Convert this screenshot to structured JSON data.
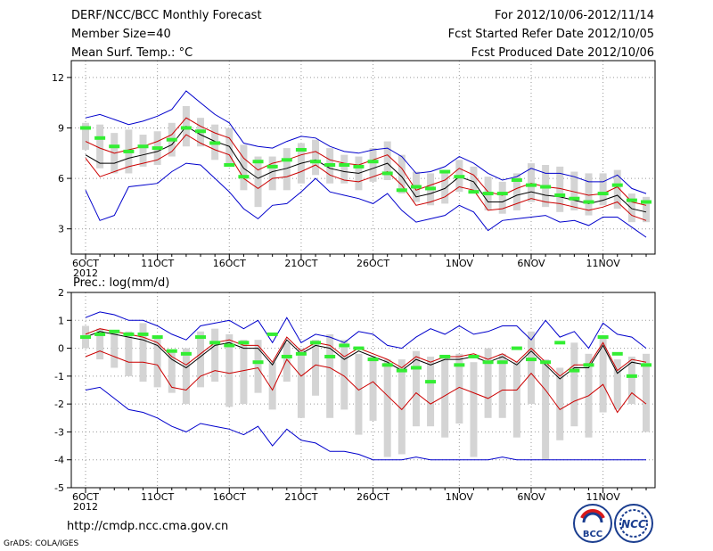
{
  "header": {
    "title": "DERF/NCC/BCC Monthly Forecast",
    "member_size": "Member Size=40",
    "variable": "Mean Surf. Temp.: °C",
    "period": "For 2012/10/06-2012/11/14",
    "started": "Fcst Started Refer Date 2012/10/05",
    "produced": "Fcst Produced Date 2012/10/06"
  },
  "footer": {
    "url": "http://cmdp.ncc.cma.gov.cn",
    "credit": "GrADS: COLA/IGES",
    "logo_left": "BCC",
    "logo_right": "NCC"
  },
  "colors": {
    "envelope": "#0000cc",
    "spread": "#cc0000",
    "mean": "#000000",
    "box": "#d4d4d4",
    "median": "#33ee33",
    "grid": "#999999"
  },
  "chart_data": [
    {
      "type": "box-plume",
      "title": "Mean Surf. Temp.: °C",
      "ylim": [
        1.5,
        13
      ],
      "yticks": [
        3,
        6,
        9,
        12
      ],
      "x_tick_labels": [
        "6OCT",
        "11OCT",
        "16OCT",
        "21OCT",
        "26OCT",
        "1NOV",
        "6NOV",
        "11NOV"
      ],
      "x_tick_index": [
        0,
        5,
        10,
        15,
        20,
        26,
        31,
        36
      ],
      "year_label": "2012",
      "days": 40,
      "max": [
        9.6,
        9.8,
        9.5,
        9.2,
        9.4,
        9.7,
        10.1,
        11.2,
        10.5,
        9.8,
        9.3,
        8.1,
        7.9,
        7.8,
        8.2,
        8.5,
        8.4,
        7.9,
        7.6,
        7.5,
        7.7,
        7.8,
        7.3,
        6.3,
        6.4,
        6.7,
        7.3,
        6.9,
        6.3,
        5.9,
        6.1,
        6.6,
        6.3,
        6.3,
        6.1,
        5.8,
        5.8,
        6.2,
        5.4,
        5.1
      ],
      "spread_hi": [
        8.2,
        7.8,
        7.5,
        7.7,
        7.9,
        8.2,
        8.6,
        9.6,
        9.1,
        8.7,
        8.4,
        7.2,
        6.5,
        6.9,
        7.1,
        7.4,
        7.6,
        7.1,
        6.9,
        6.8,
        7.1,
        7.4,
        6.6,
        5.3,
        5.6,
        5.9,
        6.6,
        6.2,
        5.2,
        5.0,
        5.4,
        5.7,
        5.5,
        5.4,
        5.2,
        5.0,
        5.1,
        5.5,
        4.6,
        4.4
      ],
      "mean": [
        7.4,
        6.9,
        6.9,
        7.2,
        7.4,
        7.6,
        8.0,
        9.1,
        8.6,
        8.2,
        7.9,
        6.6,
        6.0,
        6.4,
        6.6,
        6.9,
        7.1,
        6.6,
        6.4,
        6.3,
        6.6,
        6.9,
        6.1,
        4.9,
        5.1,
        5.4,
        6.1,
        5.8,
        4.6,
        4.6,
        5.0,
        5.2,
        5.0,
        4.9,
        4.7,
        4.5,
        4.7,
        5.0,
        4.2,
        4.0
      ],
      "spread_lo": [
        7.2,
        6.1,
        6.4,
        6.7,
        6.9,
        7.1,
        7.6,
        8.6,
        8.1,
        7.7,
        7.4,
        6.0,
        5.4,
        6.0,
        6.1,
        6.4,
        6.8,
        6.2,
        5.9,
        5.8,
        6.1,
        6.4,
        5.6,
        4.4,
        4.6,
        4.9,
        5.5,
        5.3,
        4.1,
        4.2,
        4.5,
        4.8,
        4.6,
        4.5,
        4.3,
        4.1,
        4.3,
        4.6,
        3.8,
        3.5
      ],
      "min": [
        5.3,
        3.5,
        3.8,
        5.5,
        5.6,
        5.7,
        6.4,
        6.9,
        6.8,
        6.0,
        5.2,
        4.2,
        3.6,
        4.4,
        4.5,
        5.2,
        6.0,
        5.2,
        5.0,
        4.8,
        4.5,
        5.1,
        4.1,
        3.4,
        3.6,
        3.8,
        4.4,
        4.0,
        2.9,
        3.5,
        3.6,
        3.7,
        3.8,
        3.4,
        3.5,
        3.2,
        3.7,
        3.7,
        3.1,
        2.5
      ],
      "box_hi": [
        9.3,
        9.2,
        8.7,
        8.9,
        8.6,
        8.8,
        9.3,
        10.3,
        9.6,
        9.2,
        9.0,
        8.0,
        7.3,
        7.3,
        7.8,
        8.1,
        8.3,
        7.8,
        7.4,
        7.3,
        7.8,
        8.2,
        7.4,
        6.4,
        6.3,
        6.4,
        7.1,
        6.7,
        6.1,
        5.8,
        6.3,
        6.9,
        6.8,
        6.7,
        6.4,
        6.3,
        6.3,
        6.5,
        5.1,
        4.9
      ],
      "box_lo": [
        7.7,
        6.6,
        6.3,
        6.3,
        6.7,
        6.8,
        7.3,
        7.9,
        7.9,
        7.1,
        6.8,
        5.3,
        4.3,
        5.3,
        5.3,
        5.7,
        6.2,
        5.7,
        5.7,
        5.3,
        5.8,
        5.9,
        5.1,
        4.6,
        4.4,
        4.5,
        5.2,
        5.2,
        4.1,
        3.9,
        4.1,
        4.6,
        4.3,
        4.0,
        4.1,
        3.8,
        4.4,
        4.2,
        3.4,
        3.4
      ],
      "median": [
        9.0,
        8.4,
        7.9,
        7.6,
        7.9,
        7.8,
        8.3,
        9.0,
        8.8,
        8.1,
        6.8,
        6.1,
        7.0,
        6.7,
        7.1,
        7.7,
        7.0,
        6.8,
        6.8,
        6.7,
        7.0,
        6.3,
        5.3,
        5.5,
        5.4,
        6.4,
        6.1,
        5.2,
        5.1,
        5.1,
        5.9,
        5.6,
        5.5,
        5.0,
        4.8,
        4.6,
        5.1,
        5.6,
        4.7,
        4.6
      ]
    },
    {
      "type": "box-plume",
      "title": "Prec.: log(mm/d)",
      "ylim": [
        -5,
        2
      ],
      "yticks": [
        -5,
        -4,
        -3,
        -2,
        -1,
        0,
        1,
        2
      ],
      "x_tick_labels": [
        "6OCT",
        "11OCT",
        "16OCT",
        "21OCT",
        "26OCT",
        "1NOV",
        "6NOV",
        "11NOV"
      ],
      "x_tick_index": [
        0,
        5,
        10,
        15,
        20,
        26,
        31,
        36
      ],
      "year_label": "2012",
      "days": 40,
      "max": [
        1.1,
        1.3,
        1.2,
        1.0,
        1.0,
        0.8,
        0.5,
        0.3,
        0.8,
        0.9,
        1.0,
        0.7,
        1.0,
        0.2,
        1.1,
        0.2,
        0.5,
        0.4,
        0.2,
        0.6,
        0.5,
        0.1,
        0.0,
        0.4,
        0.7,
        0.5,
        0.8,
        0.5,
        0.6,
        0.8,
        0.8,
        0.3,
        1.0,
        0.4,
        0.6,
        0.0,
        0.9,
        0.5,
        0.4,
        0.0
      ],
      "spread_hi": [
        0.5,
        0.7,
        0.6,
        0.5,
        0.4,
        0.2,
        -0.3,
        -0.6,
        -0.2,
        0.2,
        0.3,
        0.1,
        0.1,
        -0.5,
        0.4,
        -0.1,
        0.2,
        0.1,
        -0.3,
        0.0,
        -0.2,
        -0.4,
        -0.7,
        -0.3,
        -0.5,
        -0.3,
        -0.3,
        -0.2,
        -0.4,
        -0.2,
        -0.5,
        0.0,
        -0.5,
        -1.0,
        -0.6,
        -0.6,
        0.2,
        -0.8,
        -0.4,
        -0.5
      ],
      "mean": [
        0.4,
        0.6,
        0.5,
        0.4,
        0.3,
        0.1,
        -0.4,
        -0.7,
        -0.3,
        0.1,
        0.2,
        0.0,
        0.0,
        -0.6,
        0.3,
        -0.2,
        0.1,
        0.0,
        -0.4,
        -0.1,
        -0.3,
        -0.5,
        -0.8,
        -0.4,
        -0.6,
        -0.4,
        -0.4,
        -0.3,
        -0.5,
        -0.3,
        -0.6,
        -0.1,
        -0.6,
        -1.1,
        -0.7,
        -0.7,
        0.1,
        -0.9,
        -0.5,
        -0.6
      ],
      "spread_lo": [
        -0.3,
        -0.1,
        -0.3,
        -0.5,
        -0.5,
        -0.6,
        -1.4,
        -1.5,
        -1.0,
        -0.8,
        -0.9,
        -0.8,
        -0.7,
        -1.5,
        -0.4,
        -1.0,
        -0.6,
        -0.7,
        -1.0,
        -1.5,
        -1.2,
        -1.7,
        -2.2,
        -1.6,
        -2.0,
        -1.7,
        -1.4,
        -1.6,
        -1.8,
        -1.5,
        -1.5,
        -0.9,
        -1.5,
        -2.2,
        -1.9,
        -1.7,
        -1.3,
        -2.3,
        -1.6,
        -2.0
      ],
      "min": [
        -1.5,
        -1.4,
        -1.8,
        -2.2,
        -2.3,
        -2.5,
        -2.8,
        -3.0,
        -2.7,
        -2.8,
        -2.9,
        -3.1,
        -2.8,
        -3.5,
        -2.9,
        -3.3,
        -3.4,
        -3.7,
        -3.7,
        -3.8,
        -4.0,
        -4.0,
        -4.0,
        -3.9,
        -4.0,
        -4.0,
        -4.0,
        -4.0,
        -4.0,
        -3.9,
        -4.0,
        -4.0,
        -4.0,
        -4.0,
        -4.0,
        -4.0,
        -4.0,
        -4.0,
        -4.0,
        -4.0
      ],
      "box_hi": [
        0.8,
        0.7,
        0.6,
        0.6,
        0.9,
        0.4,
        -0.1,
        0.0,
        0.6,
        0.7,
        0.5,
        0.3,
        0.3,
        -0.5,
        0.2,
        0.0,
        0.3,
        0.5,
        0.3,
        -0.2,
        -0.3,
        -0.4,
        -0.4,
        -0.1,
        -0.3,
        -0.3,
        -0.2,
        -0.5,
        0.0,
        -0.2,
        -0.5,
        0.6,
        -0.4,
        -0.7,
        0.2,
        -0.2,
        0.4,
        -0.4,
        -0.3,
        -0.2
      ],
      "box_lo": [
        0.0,
        -0.4,
        -0.7,
        -1.0,
        -1.2,
        -1.4,
        -1.6,
        -2.0,
        -1.4,
        -1.2,
        -2.1,
        -2.0,
        -1.6,
        -2.2,
        -1.2,
        -2.5,
        -1.7,
        -2.5,
        -2.2,
        -3.1,
        -2.6,
        -3.9,
        -3.8,
        -2.8,
        -2.8,
        -3.2,
        -2.7,
        -3.9,
        -2.5,
        -2.5,
        -3.2,
        -2.0,
        -4.0,
        -3.3,
        -2.8,
        -3.2,
        -2.3,
        -2.2,
        -2.0,
        -3.0
      ],
      "median": [
        0.4,
        0.5,
        0.6,
        0.5,
        0.5,
        0.4,
        -0.1,
        -0.2,
        0.4,
        0.2,
        0.1,
        0.2,
        -0.5,
        0.5,
        -0.3,
        -0.2,
        0.2,
        -0.3,
        0.1,
        0.0,
        -0.4,
        -0.6,
        -0.8,
        -0.7,
        -1.2,
        -0.3,
        -0.6,
        -0.3,
        -0.5,
        -0.5,
        0.0,
        -0.4,
        -0.5,
        0.2,
        -0.8,
        -0.6,
        0.4,
        -0.2,
        -1.0,
        -0.6
      ]
    }
  ]
}
